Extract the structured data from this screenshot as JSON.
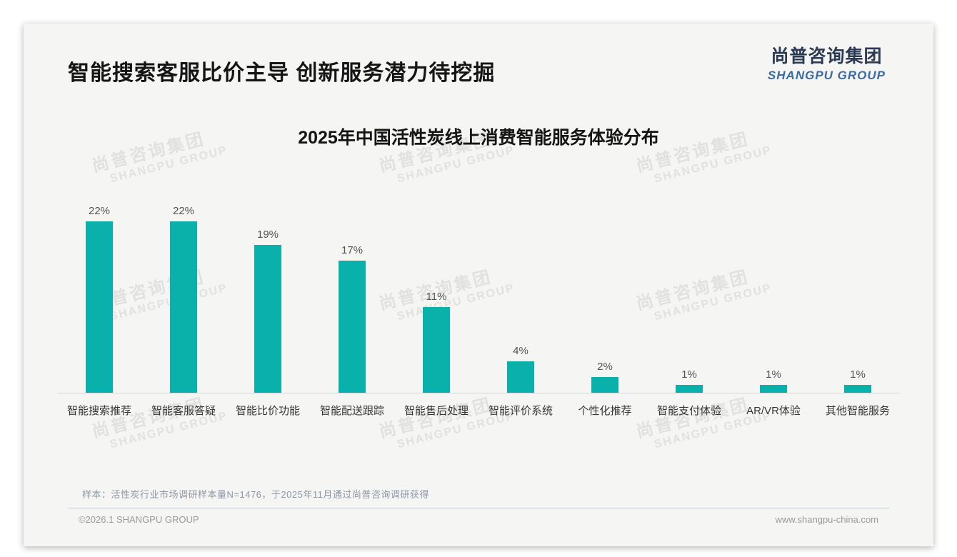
{
  "page": {
    "header_title": "智能搜索客服比价主导 创新服务潜力待挖掘",
    "logo": {
      "cn": "尚普咨询集团",
      "en": "SHANGPU GROUP"
    },
    "watermark": {
      "cn": "尚普咨询集团",
      "en": "SHANGPU GROUP"
    },
    "note": "样本：活性炭行业市场调研样本量N=1476，于2025年11月通过尚普咨询调研获得",
    "footer_left": "©2026.1 SHANGPU GROUP",
    "footer_right": "www.shangpu-china.com"
  },
  "chart_data": {
    "type": "bar",
    "title": "2025年中国活性炭线上消费智能服务体验分布",
    "categories": [
      "智能搜索推荐",
      "智能客服答疑",
      "智能比价功能",
      "智能配送跟踪",
      "智能售后处理",
      "智能评价系统",
      "个性化推荐",
      "智能支付体验",
      "AR/VR体验",
      "其他智能服务"
    ],
    "values": [
      22,
      22,
      19,
      17,
      11,
      4,
      2,
      1,
      1,
      1
    ],
    "unit": "%",
    "bar_color": "#0ab1aa",
    "value_label_position": "above-bar",
    "xlabel": "",
    "ylabel": "",
    "ylim": [
      0,
      24.75
    ],
    "grid": false,
    "legend": "none",
    "y_axis_visible": false
  }
}
